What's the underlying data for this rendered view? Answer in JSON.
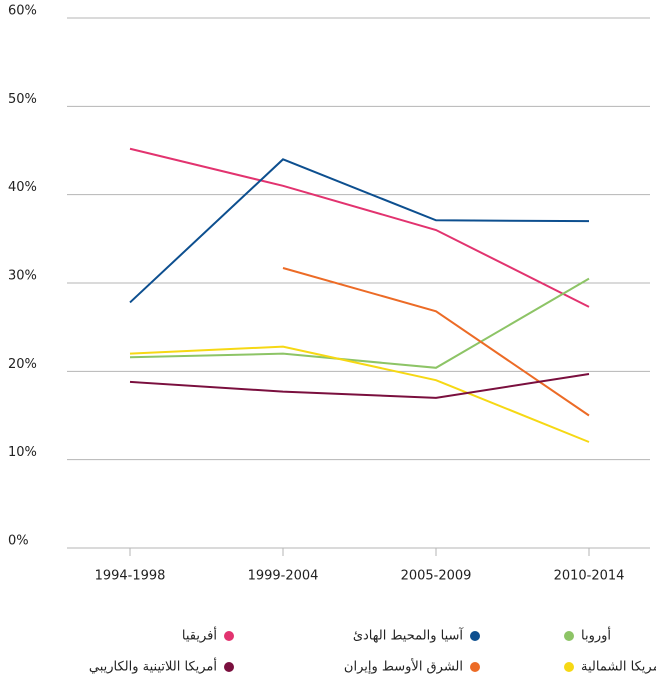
{
  "chart_data": {
    "type": "line",
    "categories": [
      "1994-1998",
      "1999-2004",
      "2005-2009",
      "2010-2014"
    ],
    "series": [
      {
        "name": "أفريقيا",
        "color": "#e2336f",
        "values": [
          45.2,
          41,
          36,
          27.3
        ]
      },
      {
        "name": "آسيا والمحيط الهادئ",
        "color": "#0d4f8f",
        "values": [
          27.8,
          44,
          37.1,
          37
        ]
      },
      {
        "name": "أوروبا",
        "color": "#8dc466",
        "values": [
          21.6,
          22,
          20.4,
          30.5
        ]
      },
      {
        "name": "الشرق الأوسط وإيران",
        "color": "#ec6b26",
        "values": [
          null,
          31.7,
          26.8,
          15
        ]
      },
      {
        "name": "أمريكا الشمالية",
        "color": "#f6d814",
        "values": [
          22,
          22.8,
          19,
          12
        ]
      },
      {
        "name": "أمريكا اللاتينية والكاريبي",
        "color": "#7a0f3e",
        "values": [
          18.8,
          17.7,
          17,
          19.7
        ]
      }
    ],
    "ylim": [
      0,
      60
    ],
    "yticks": [
      {
        "value": 0,
        "label": "0%"
      },
      {
        "value": 10,
        "label": "10%"
      },
      {
        "value": 20,
        "label": "20%"
      },
      {
        "value": 30,
        "label": "30%"
      },
      {
        "value": 40,
        "label": "40%"
      },
      {
        "value": 50,
        "label": "50%"
      },
      {
        "value": 60,
        "label": "60%"
      }
    ],
    "grid": true
  }
}
